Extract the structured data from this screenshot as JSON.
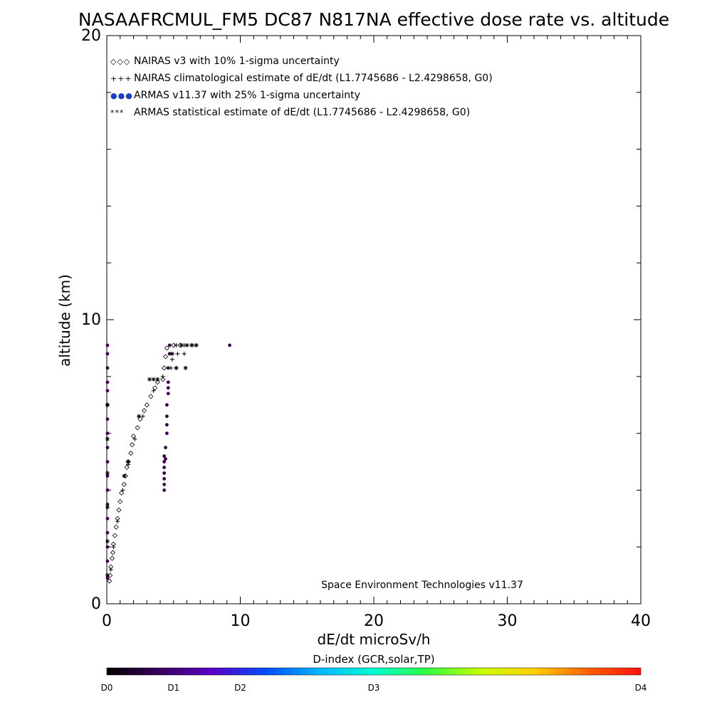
{
  "chart_data": {
    "type": "scatter",
    "title": "NASAAFRCMUL_FM5 DC87 N817NA effective dose rate vs. altitude",
    "xlabel": "dE/dt microSv/h",
    "ylabel": "altitude (km)",
    "xlim": [
      0,
      40
    ],
    "ylim": [
      0,
      20
    ],
    "x_ticks": [
      "0",
      "10",
      "20",
      "30",
      "40"
    ],
    "y_ticks": [
      "0",
      "10",
      "20"
    ],
    "grid": false,
    "legend_position": "top-left",
    "legend": [
      {
        "marker": "◇◇◇",
        "label": "NAIRAS v3 with 10% 1-sigma uncertainty"
      },
      {
        "marker": "+++",
        "label": "NAIRAS climatological estimate of dE/dt (L1.7745686 - L2.4298658, G0)"
      },
      {
        "marker": "●●●",
        "label": "ARMAS v11.37 with 25% 1-sigma uncertainty"
      },
      {
        "marker": "***",
        "label": "ARMAS statistical estimate of dE/dt (L1.7745686 - L2.4298658, G0)"
      }
    ],
    "credit": "Space Environment Technologies v11.37",
    "colorbar": {
      "label": "D-index (GCR,solar,TP)",
      "ticks": [
        {
          "label": "D0",
          "value": 0
        },
        {
          "label": "D1",
          "value": 1
        },
        {
          "label": "D2",
          "value": 2
        },
        {
          "label": "D3",
          "value": 3
        },
        {
          "label": "D4",
          "value": 4
        }
      ],
      "colors": [
        "#000000",
        "#3a0060",
        "#5a00c8",
        "#0050ff",
        "#00b8ff",
        "#00ffd0",
        "#30ff40",
        "#c8ff00",
        "#ffd000",
        "#ff6000",
        "#ff1010"
      ]
    },
    "series": [
      {
        "name": "NAIRAS v3 with 10% 1-sigma uncertainty",
        "marker": "diamond",
        "color": "#000000",
        "points": [
          [
            0.2,
            0.8
          ],
          [
            0.25,
            1.0
          ],
          [
            0.3,
            1.3
          ],
          [
            0.4,
            1.6
          ],
          [
            0.45,
            1.8
          ],
          [
            0.5,
            2.1
          ],
          [
            0.6,
            2.4
          ],
          [
            0.7,
            2.7
          ],
          [
            0.8,
            3.0
          ],
          [
            0.9,
            3.3
          ],
          [
            1.0,
            3.6
          ],
          [
            1.1,
            3.9
          ],
          [
            1.3,
            4.2
          ],
          [
            1.4,
            4.5
          ],
          [
            1.5,
            4.8
          ],
          [
            1.6,
            5.0
          ],
          [
            1.8,
            5.3
          ],
          [
            1.9,
            5.6
          ],
          [
            2.0,
            5.9
          ],
          [
            2.3,
            6.2
          ],
          [
            2.5,
            6.5
          ],
          [
            2.8,
            6.8
          ],
          [
            3.0,
            7.0
          ],
          [
            3.3,
            7.3
          ],
          [
            3.6,
            7.6
          ],
          [
            3.8,
            7.8
          ],
          [
            4.2,
            7.9
          ],
          [
            4.3,
            8.3
          ],
          [
            4.4,
            8.7
          ],
          [
            4.5,
            9.0
          ],
          [
            5.0,
            9.1
          ],
          [
            5.5,
            9.1
          ]
        ]
      },
      {
        "name": "NAIRAS climatological estimate of dE/dt (L1.7745686 - L2.4298658, G0)",
        "marker": "plus",
        "color": "#000000",
        "points": [
          [
            0.3,
            1.2
          ],
          [
            0.5,
            2.0
          ],
          [
            0.8,
            2.9
          ],
          [
            1.2,
            4.0
          ],
          [
            1.6,
            4.9
          ],
          [
            2.1,
            5.8
          ],
          [
            2.7,
            6.6
          ],
          [
            3.5,
            7.5
          ],
          [
            4.2,
            8.0
          ],
          [
            4.8,
            8.3
          ],
          [
            5.2,
            8.3
          ],
          [
            4.9,
            8.6
          ],
          [
            5.3,
            8.8
          ],
          [
            5.8,
            8.8
          ],
          [
            5.2,
            9.1
          ],
          [
            5.8,
            9.1
          ],
          [
            6.3,
            9.1
          ],
          [
            6.7,
            9.1
          ]
        ]
      },
      {
        "name": "ARMAS v11.37 with 25% 1-sigma uncertainty",
        "marker": "dot",
        "color": "#3a0048",
        "points": [
          [
            0.05,
            0.9
          ],
          [
            0.05,
            1.5
          ],
          [
            0.05,
            2.0
          ],
          [
            0.05,
            2.5
          ],
          [
            0.05,
            3.0
          ],
          [
            0.05,
            3.5
          ],
          [
            0.05,
            4.0
          ],
          [
            0.05,
            4.5
          ],
          [
            0.05,
            5.0
          ],
          [
            0.05,
            5.5
          ],
          [
            0.05,
            6.0
          ],
          [
            0.05,
            6.5
          ],
          [
            0.05,
            7.0
          ],
          [
            0.05,
            7.5
          ],
          [
            0.05,
            7.8
          ],
          [
            0.05,
            8.3
          ],
          [
            0.05,
            8.8
          ],
          [
            0.05,
            9.1
          ],
          [
            4.3,
            4.0
          ],
          [
            4.3,
            4.2
          ],
          [
            4.3,
            4.4
          ],
          [
            4.3,
            4.6
          ],
          [
            4.3,
            4.8
          ],
          [
            4.3,
            5.0
          ],
          [
            4.3,
            5.2
          ],
          [
            4.4,
            5.1
          ],
          [
            4.4,
            5.5
          ],
          [
            4.5,
            6.0
          ],
          [
            4.5,
            6.3
          ],
          [
            4.5,
            6.6
          ],
          [
            4.5,
            7.0
          ],
          [
            4.6,
            7.4
          ],
          [
            4.6,
            7.6
          ],
          [
            4.6,
            7.8
          ],
          [
            4.6,
            8.3
          ],
          [
            4.7,
            8.8
          ],
          [
            4.7,
            9.1
          ],
          [
            9.2,
            9.1
          ]
        ]
      },
      {
        "name": "ARMAS statistical estimate of dE/dt (L1.7745686 - L2.4298658, G0)",
        "marker": "asterisk",
        "color": "#000000",
        "points": [
          [
            0.05,
            1.0
          ],
          [
            0.05,
            2.2
          ],
          [
            0.05,
            3.4
          ],
          [
            0.05,
            4.6
          ],
          [
            0.05,
            5.8
          ],
          [
            0.05,
            7.0
          ],
          [
            1.3,
            4.5
          ],
          [
            1.6,
            5.0
          ],
          [
            2.4,
            6.6
          ],
          [
            3.2,
            7.9
          ],
          [
            3.5,
            7.9
          ],
          [
            3.8,
            7.9
          ],
          [
            4.9,
            8.8
          ],
          [
            5.2,
            8.3
          ],
          [
            5.9,
            8.3
          ],
          [
            5.6,
            9.1
          ],
          [
            6.0,
            9.1
          ],
          [
            6.4,
            9.1
          ],
          [
            6.7,
            9.1
          ]
        ]
      }
    ]
  }
}
